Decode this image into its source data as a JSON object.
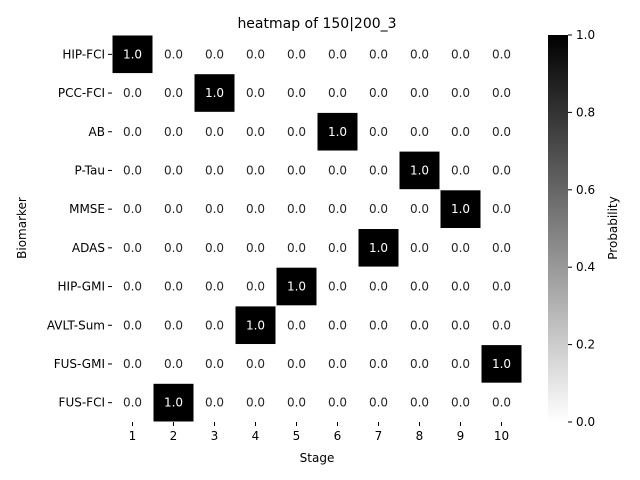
{
  "chart_data": {
    "type": "heatmap",
    "title": "heatmap of 150|200_3",
    "xlabel": "Stage",
    "ylabel": "Biomarker",
    "x_categories": [
      "1",
      "2",
      "3",
      "4",
      "5",
      "6",
      "7",
      "8",
      "9",
      "10"
    ],
    "y_categories": [
      "HIP-FCI",
      "PCC-FCI",
      "AB",
      "P-Tau",
      "MMSE",
      "ADAS",
      "HIP-GMI",
      "AVLT-Sum",
      "FUS-GMI",
      "FUS-FCI"
    ],
    "values": [
      [
        1.0,
        0.0,
        0.0,
        0.0,
        0.0,
        0.0,
        0.0,
        0.0,
        0.0,
        0.0
      ],
      [
        0.0,
        0.0,
        1.0,
        0.0,
        0.0,
        0.0,
        0.0,
        0.0,
        0.0,
        0.0
      ],
      [
        0.0,
        0.0,
        0.0,
        0.0,
        0.0,
        1.0,
        0.0,
        0.0,
        0.0,
        0.0
      ],
      [
        0.0,
        0.0,
        0.0,
        0.0,
        0.0,
        0.0,
        0.0,
        1.0,
        0.0,
        0.0
      ],
      [
        0.0,
        0.0,
        0.0,
        0.0,
        0.0,
        0.0,
        0.0,
        0.0,
        1.0,
        0.0
      ],
      [
        0.0,
        0.0,
        0.0,
        0.0,
        0.0,
        0.0,
        1.0,
        0.0,
        0.0,
        0.0
      ],
      [
        0.0,
        0.0,
        0.0,
        0.0,
        1.0,
        0.0,
        0.0,
        0.0,
        0.0,
        0.0
      ],
      [
        0.0,
        0.0,
        0.0,
        1.0,
        0.0,
        0.0,
        0.0,
        0.0,
        0.0,
        0.0
      ],
      [
        0.0,
        0.0,
        0.0,
        0.0,
        0.0,
        0.0,
        0.0,
        0.0,
        0.0,
        1.0
      ],
      [
        0.0,
        1.0,
        0.0,
        0.0,
        0.0,
        0.0,
        0.0,
        0.0,
        0.0,
        0.0
      ]
    ],
    "value_range": [
      0.0,
      1.0
    ],
    "colorscale": [
      "#ffffff",
      "#000000"
    ],
    "colorbar": {
      "label": "Probability",
      "ticks": [
        "0.0",
        "0.2",
        "0.4",
        "0.6",
        "0.8",
        "1.0"
      ]
    },
    "cell_border_color": "#ffffff"
  }
}
